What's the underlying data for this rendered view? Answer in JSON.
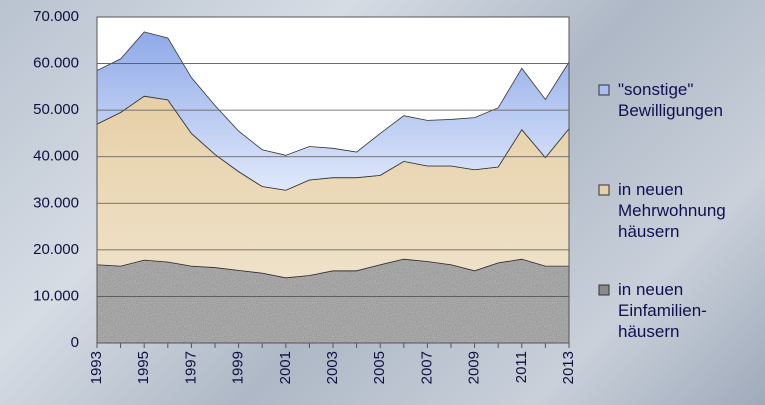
{
  "chart_data": {
    "type": "stacked_area",
    "categories": [
      "1993",
      null,
      "1995",
      null,
      "1997",
      null,
      "1999",
      null,
      "2001",
      null,
      "2003",
      null,
      "2005",
      null,
      "2007",
      null,
      "2009",
      null,
      "2011",
      null,
      "2013"
    ],
    "series": [
      {
        "name": "in neuen\nEinfamilien-\nhäusern",
        "color": "#8a8a8a",
        "values": [
          16800,
          16500,
          17800,
          17400,
          16500,
          16200,
          15600,
          15000,
          14000,
          14500,
          15500,
          15500,
          16800,
          18000,
          17500,
          16800,
          15500,
          17200,
          18000,
          16500,
          16500
        ]
      },
      {
        "name": "in neuen\nMehrwohnung\nhäusern",
        "color": "#e6d1ad",
        "values": [
          30200,
          33000,
          35200,
          34800,
          28500,
          24300,
          21200,
          18600,
          18800,
          20500,
          20000,
          20000,
          19200,
          21000,
          20500,
          21200,
          21700,
          20600,
          27800,
          23300,
          29500
        ]
      },
      {
        "name": "\"sonstige\"\nBewilligungen",
        "color": "#a8bdf0",
        "values": [
          11500,
          11500,
          13800,
          13300,
          12000,
          10500,
          8700,
          7900,
          7500,
          7200,
          6300,
          5500,
          9000,
          9800,
          9800,
          10000,
          11200,
          12700,
          13200,
          12500,
          14300
        ]
      }
    ],
    "ylim": [
      0,
      70000
    ],
    "yticks": [
      0,
      {
        "value": 10000,
        "label": "10.000"
      },
      {
        "value": 20000,
        "label": "20.000"
      },
      {
        "value": 30000,
        "label": "30.000"
      },
      {
        "value": 40000,
        "label": "40.000"
      },
      {
        "value": 50000,
        "label": "50.000"
      },
      {
        "value": 60000,
        "label": "60.000"
      },
      {
        "value": 70000,
        "label": "70.000"
      }
    ],
    "grid": true
  }
}
